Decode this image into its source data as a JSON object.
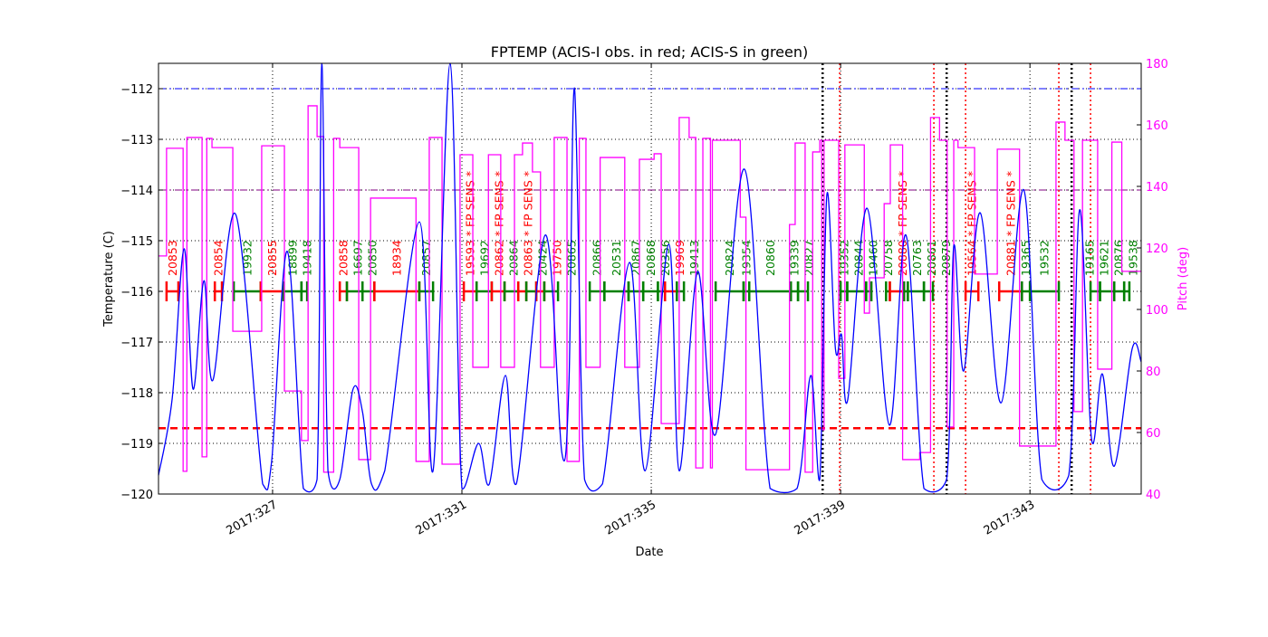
{
  "chart_data": {
    "type": "line",
    "title": "FPTEMP (ACIS-I obs. in red; ACIS-S in green)",
    "xlabel": "Date",
    "ylabel": "Temperature (C)",
    "y2label": "Pitch (deg)",
    "xlim": [
      324.59,
      345.35
    ],
    "ylim": [
      -120,
      -111.5
    ],
    "y2lim": [
      40,
      180
    ],
    "grid": true,
    "x_ticks": [
      327,
      331,
      335,
      339,
      343
    ],
    "x_tick_labels": [
      "2017:327",
      "2017:331",
      "2017:335",
      "2017:339",
      "2017:343"
    ],
    "y_ticks": [
      -120,
      -119,
      -118,
      -117,
      -116,
      -115,
      -114,
      -113,
      -112
    ],
    "y2_ticks": [
      40,
      60,
      80,
      100,
      120,
      140,
      160,
      180
    ],
    "colors": {
      "temp": "#0000ff",
      "pitch": "#ff00ff",
      "acis_i": "#ff0000",
      "acis_s": "#008000",
      "limit_112": "#0000ff",
      "limit_114": "#800080",
      "limit_118_7": "#ff0000"
    },
    "hlines": [
      {
        "y": -112,
        "color": "#0000ff",
        "style": "dashdot"
      },
      {
        "y": -114,
        "color": "#800080",
        "style": "dashdot"
      },
      {
        "y": -118.7,
        "color": "#ff0000",
        "style": "dashed"
      }
    ],
    "vlines": [
      {
        "x": 338.62,
        "color": "#000000"
      },
      {
        "x": 341.24,
        "color": "#000000"
      },
      {
        "x": 343.88,
        "color": "#000000"
      },
      {
        "x": 338.98,
        "color": "#ff0000"
      },
      {
        "x": 340.97,
        "color": "#ff0000"
      },
      {
        "x": 341.64,
        "color": "#ff0000"
      },
      {
        "x": 343.61,
        "color": "#ff0000"
      },
      {
        "x": 344.28,
        "color": "#ff0000"
      }
    ],
    "temperature": [
      [
        324.59,
        -119.63
      ],
      [
        324.88,
        -118.11
      ],
      [
        325.13,
        -115.16
      ],
      [
        325.32,
        -117.93
      ],
      [
        325.55,
        -115.79
      ],
      [
        325.74,
        -117.75
      ],
      [
        326.22,
        -114.48
      ],
      [
        326.79,
        -119.8
      ],
      [
        326.98,
        -119.36
      ],
      [
        327.31,
        -115.21
      ],
      [
        327.65,
        -119.89
      ],
      [
        327.94,
        -119.71
      ],
      [
        328.04,
        -111.5
      ],
      [
        328.17,
        -119.54
      ],
      [
        328.42,
        -119.71
      ],
      [
        328.7,
        -117.93
      ],
      [
        328.9,
        -118.38
      ],
      [
        329.09,
        -119.8
      ],
      [
        329.37,
        -119.54
      ],
      [
        330.1,
        -114.63
      ],
      [
        330.39,
        -119.54
      ],
      [
        330.75,
        -111.5
      ],
      [
        331.0,
        -119.89
      ],
      [
        331.35,
        -119.0
      ],
      [
        331.58,
        -119.8
      ],
      [
        331.92,
        -117.66
      ],
      [
        332.15,
        -119.8
      ],
      [
        332.76,
        -114.89
      ],
      [
        333.11,
        -119.18
      ],
      [
        333.26,
        -117.84
      ],
      [
        333.38,
        -112.0
      ],
      [
        333.59,
        -119.71
      ],
      [
        333.97,
        -119.8
      ],
      [
        334.54,
        -115.43
      ],
      [
        334.87,
        -119.54
      ],
      [
        335.37,
        -115.07
      ],
      [
        335.59,
        -119.54
      ],
      [
        335.98,
        -115.61
      ],
      [
        336.36,
        -118.82
      ],
      [
        336.97,
        -113.59
      ],
      [
        337.51,
        -119.89
      ],
      [
        338.08,
        -119.89
      ],
      [
        338.37,
        -117.66
      ],
      [
        338.56,
        -119.71
      ],
      [
        338.71,
        -114.09
      ],
      [
        338.89,
        -117.13
      ],
      [
        339.02,
        -116.86
      ],
      [
        339.15,
        -118.14
      ],
      [
        339.56,
        -114.36
      ],
      [
        340.03,
        -118.64
      ],
      [
        340.38,
        -114.89
      ],
      [
        340.76,
        -119.89
      ],
      [
        341.24,
        -119.71
      ],
      [
        341.39,
        -115.11
      ],
      [
        341.6,
        -117.57
      ],
      [
        341.95,
        -114.45
      ],
      [
        342.39,
        -118.2
      ],
      [
        342.87,
        -114.0
      ],
      [
        343.25,
        -119.71
      ],
      [
        343.82,
        -119.63
      ],
      [
        344.05,
        -114.39
      ],
      [
        344.3,
        -118.91
      ],
      [
        344.53,
        -117.63
      ],
      [
        344.78,
        -119.45
      ],
      [
        345.16,
        -117.13
      ],
      [
        345.35,
        -117.39
      ]
    ],
    "pitch_steps": [
      [
        324.59,
        117.4
      ],
      [
        324.76,
        152.4
      ],
      [
        325.11,
        47.4
      ],
      [
        325.19,
        155.9
      ],
      [
        325.51,
        52.1
      ],
      [
        325.61,
        155.6
      ],
      [
        325.72,
        152.6
      ],
      [
        326.16,
        92.9
      ],
      [
        326.77,
        153.2
      ],
      [
        327.25,
        73.5
      ],
      [
        327.61,
        57.4
      ],
      [
        327.75,
        166.2
      ],
      [
        327.94,
        156.2
      ],
      [
        328.08,
        47.1
      ],
      [
        328.29,
        155.6
      ],
      [
        328.42,
        152.6
      ],
      [
        328.82,
        51.2
      ],
      [
        329.07,
        136.2
      ],
      [
        330.03,
        50.6
      ],
      [
        330.31,
        155.9
      ],
      [
        330.58,
        49.7
      ],
      [
        330.96,
        150.3
      ],
      [
        331.23,
        81.2
      ],
      [
        331.56,
        150.3
      ],
      [
        331.82,
        81.2
      ],
      [
        332.11,
        150.3
      ],
      [
        332.28,
        154.1
      ],
      [
        332.49,
        144.7
      ],
      [
        332.66,
        81.2
      ],
      [
        332.95,
        155.9
      ],
      [
        333.22,
        50.6
      ],
      [
        333.48,
        155.6
      ],
      [
        333.62,
        81.2
      ],
      [
        333.92,
        149.4
      ],
      [
        334.44,
        81.2
      ],
      [
        334.75,
        148.8
      ],
      [
        335.06,
        150.6
      ],
      [
        335.21,
        62.9
      ],
      [
        335.59,
        162.4
      ],
      [
        335.8,
        155.9
      ],
      [
        335.94,
        48.5
      ],
      [
        336.09,
        155.6
      ],
      [
        336.25,
        48.5
      ],
      [
        336.29,
        155.0
      ],
      [
        336.88,
        130.0
      ],
      [
        337.0,
        47.9
      ],
      [
        337.92,
        127.6
      ],
      [
        338.04,
        154.1
      ],
      [
        338.25,
        47.1
      ],
      [
        338.41,
        151.2
      ],
      [
        338.56,
        155.0
      ],
      [
        338.6,
        60.9
      ],
      [
        338.65,
        155.0
      ],
      [
        338.96,
        77.6
      ],
      [
        339.09,
        153.5
      ],
      [
        339.5,
        98.8
      ],
      [
        339.61,
        110.3
      ],
      [
        339.92,
        134.4
      ],
      [
        340.05,
        153.5
      ],
      [
        340.31,
        51.2
      ],
      [
        340.67,
        53.5
      ],
      [
        340.9,
        162.4
      ],
      [
        341.09,
        155.0
      ],
      [
        341.25,
        61.8
      ],
      [
        341.39,
        155.0
      ],
      [
        341.48,
        152.6
      ],
      [
        341.83,
        111.5
      ],
      [
        342.31,
        152.1
      ],
      [
        342.78,
        55.6
      ],
      [
        343.55,
        160.9
      ],
      [
        343.74,
        155.0
      ],
      [
        343.93,
        66.8
      ],
      [
        344.11,
        155.0
      ],
      [
        344.43,
        80.6
      ],
      [
        344.73,
        154.4
      ],
      [
        344.94,
        112.4
      ]
    ],
    "obs_level": -116,
    "observations": [
      {
        "label": "20853",
        "inst": "I",
        "start": 324.76,
        "end": 325.01
      },
      {
        "label": "20854",
        "inst": "I",
        "start": 325.78,
        "end": 325.93
      },
      {
        "label": "19932",
        "inst": "S",
        "start": 326.18,
        "end": 326.75
      },
      {
        "label": "20855",
        "inst": "I",
        "start": 326.75,
        "end": 327.23
      },
      {
        "label": "18899",
        "inst": "S",
        "start": 327.23,
        "end": 327.61
      },
      {
        "label": "19418",
        "inst": "S",
        "start": 327.61,
        "end": 327.73
      },
      {
        "label": "20858",
        "inst": "I",
        "start": 328.42,
        "end": 328.57
      },
      {
        "label": "16697",
        "inst": "S",
        "start": 328.57,
        "end": 328.9
      },
      {
        "label": "20850",
        "inst": "S",
        "start": 328.9,
        "end": 329.15
      },
      {
        "label": "18934",
        "inst": "I",
        "start": 329.15,
        "end": 330.1
      },
      {
        "label": "20857",
        "inst": "S",
        "start": 330.1,
        "end": 330.39
      },
      {
        "label": "19593 * FP SENS *",
        "inst": "I",
        "start": 331.04,
        "end": 331.31
      },
      {
        "label": "19692",
        "inst": "S",
        "start": 331.31,
        "end": 331.63
      },
      {
        "label": "20862 * FP SENS *",
        "inst": "I",
        "start": 331.63,
        "end": 331.9
      },
      {
        "label": "20864",
        "inst": "S",
        "start": 331.9,
        "end": 332.19
      },
      {
        "label": "20863 * FP SENS *",
        "inst": "I",
        "start": 332.19,
        "end": 332.36
      },
      {
        "label": "20424",
        "inst": "S",
        "start": 332.36,
        "end": 332.57
      },
      {
        "label": "19750",
        "inst": "I",
        "start": 332.57,
        "end": 332.74
      },
      {
        "label": "20865",
        "inst": "S",
        "start": 332.74,
        "end": 333.03
      },
      {
        "label": "20866",
        "inst": "S",
        "start": 333.7,
        "end": 334.01
      },
      {
        "label": "20531",
        "inst": "S",
        "start": 334.01,
        "end": 334.52
      },
      {
        "label": "20867",
        "inst": "S",
        "start": 334.52,
        "end": 334.83
      },
      {
        "label": "20868",
        "inst": "S",
        "start": 334.83,
        "end": 335.14
      },
      {
        "label": "20356",
        "inst": "S",
        "start": 335.14,
        "end": 335.29
      },
      {
        "label": "19969",
        "inst": "I",
        "start": 335.29,
        "end": 335.54
      },
      {
        "label": "19413",
        "inst": "S",
        "start": 335.54,
        "end": 335.69
      },
      {
        "label": "20824",
        "inst": "S",
        "start": 336.36,
        "end": 336.95
      },
      {
        "label": "19354",
        "inst": "S",
        "start": 336.95,
        "end": 337.07
      },
      {
        "label": "20860",
        "inst": "S",
        "start": 337.07,
        "end": 337.95
      },
      {
        "label": "19339",
        "inst": "S",
        "start": 337.95,
        "end": 338.1
      },
      {
        "label": "20827",
        "inst": "S",
        "start": 338.1,
        "end": 338.31
      },
      {
        "label": "19352",
        "inst": "S",
        "start": 339.0,
        "end": 339.14
      },
      {
        "label": "20844",
        "inst": "S",
        "start": 339.14,
        "end": 339.54
      },
      {
        "label": "19460",
        "inst": "S",
        "start": 339.54,
        "end": 339.65
      },
      {
        "label": "20758",
        "inst": "S",
        "start": 339.96,
        "end": 340.04
      },
      {
        "label": "20880 * FP SENS *",
        "inst": "I",
        "start": 340.04,
        "end": 340.34
      },
      {
        "label": "20763",
        "inst": "S",
        "start": 340.34,
        "end": 340.42
      },
      {
        "label": "20861",
        "inst": "S",
        "start": 340.42,
        "end": 340.76
      },
      {
        "label": "20879",
        "inst": "S",
        "start": 340.76,
        "end": 340.95
      },
      {
        "label": "19564 * FP SENS *",
        "inst": "I",
        "start": 341.64,
        "end": 341.91
      },
      {
        "label": "20881 * FP SENS *",
        "inst": "I",
        "start": 342.35,
        "end": 342.83
      },
      {
        "label": "19365",
        "inst": "S",
        "start": 342.83,
        "end": 343.0
      },
      {
        "label": "19532",
        "inst": "S",
        "start": 343.0,
        "end": 343.61
      },
      {
        "label": "19165",
        "inst": "S",
        "start": 344.28,
        "end": 344.48
      },
      {
        "label": "19621",
        "inst": "S",
        "start": 344.48,
        "end": 344.78
      },
      {
        "label": "20876",
        "inst": "S",
        "start": 344.78,
        "end": 344.99
      },
      {
        "label": "19538",
        "inst": "S",
        "start": 344.99,
        "end": 345.1
      }
    ]
  }
}
